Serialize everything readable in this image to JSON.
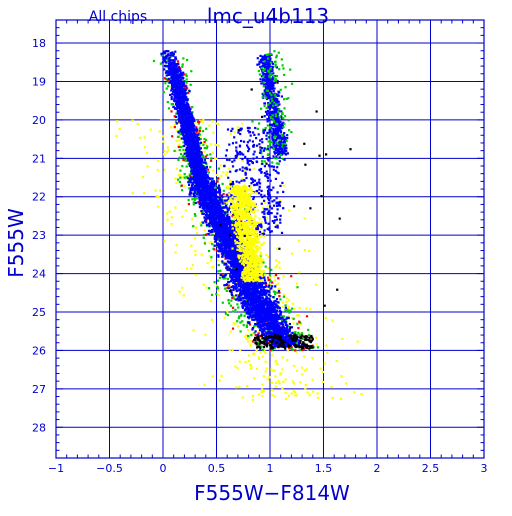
{
  "chart_data": {
    "type": "scatter",
    "title": "lmc_u4b113",
    "subtitle": "All chips",
    "xlabel": "F555W−F814W",
    "ylabel": "F555W",
    "xlim": [
      -1,
      3
    ],
    "ylim": [
      28.8,
      17.4
    ],
    "y_inverted": true,
    "grid": true,
    "x_ticks": [
      -1,
      -0.5,
      0,
      0.5,
      1,
      1.5,
      2,
      2.5,
      3
    ],
    "x_tick_labels": [
      "−1",
      "−0.5",
      "0",
      "0.5",
      "1",
      "1.5",
      "2",
      "2.5",
      "3"
    ],
    "y_ticks": [
      18,
      19,
      20,
      21,
      22,
      23,
      24,
      25,
      26,
      27,
      28
    ],
    "y_tick_labels": [
      "18",
      "19",
      "20",
      "21",
      "22",
      "23",
      "24",
      "25",
      "26",
      "27",
      "28"
    ],
    "colors": {
      "axes": "#0000cc",
      "grid": "#0000cc",
      "series_colors": [
        "#0000ff",
        "#ffff00",
        "#00cc00",
        "#ff0000",
        "#000000"
      ]
    },
    "density_regions": [
      {
        "region": "upper main sequence / blue plume",
        "color_range": [
          0.0,
          0.55
        ],
        "mag_range": [
          18.2,
          21.5
        ]
      },
      {
        "region": "main sequence",
        "color_range": [
          0.35,
          1.3
        ],
        "mag_range": [
          21.5,
          25.8
        ]
      },
      {
        "region": "lower main sequence tail",
        "color_range": [
          0.6,
          1.6
        ],
        "mag_range": [
          24.5,
          26.0
        ]
      },
      {
        "region": "red giant branch / clump",
        "color_range": [
          0.9,
          1.3
        ],
        "mag_range": [
          18.2,
          21.0
        ]
      },
      {
        "region": "yellow core",
        "color_range": [
          0.5,
          1.1
        ],
        "mag_range": [
          21.6,
          24.3
        ]
      },
      {
        "region": "black-point band",
        "color_range": [
          0.8,
          1.4
        ],
        "mag_range": [
          25.6,
          25.95
        ]
      }
    ]
  }
}
